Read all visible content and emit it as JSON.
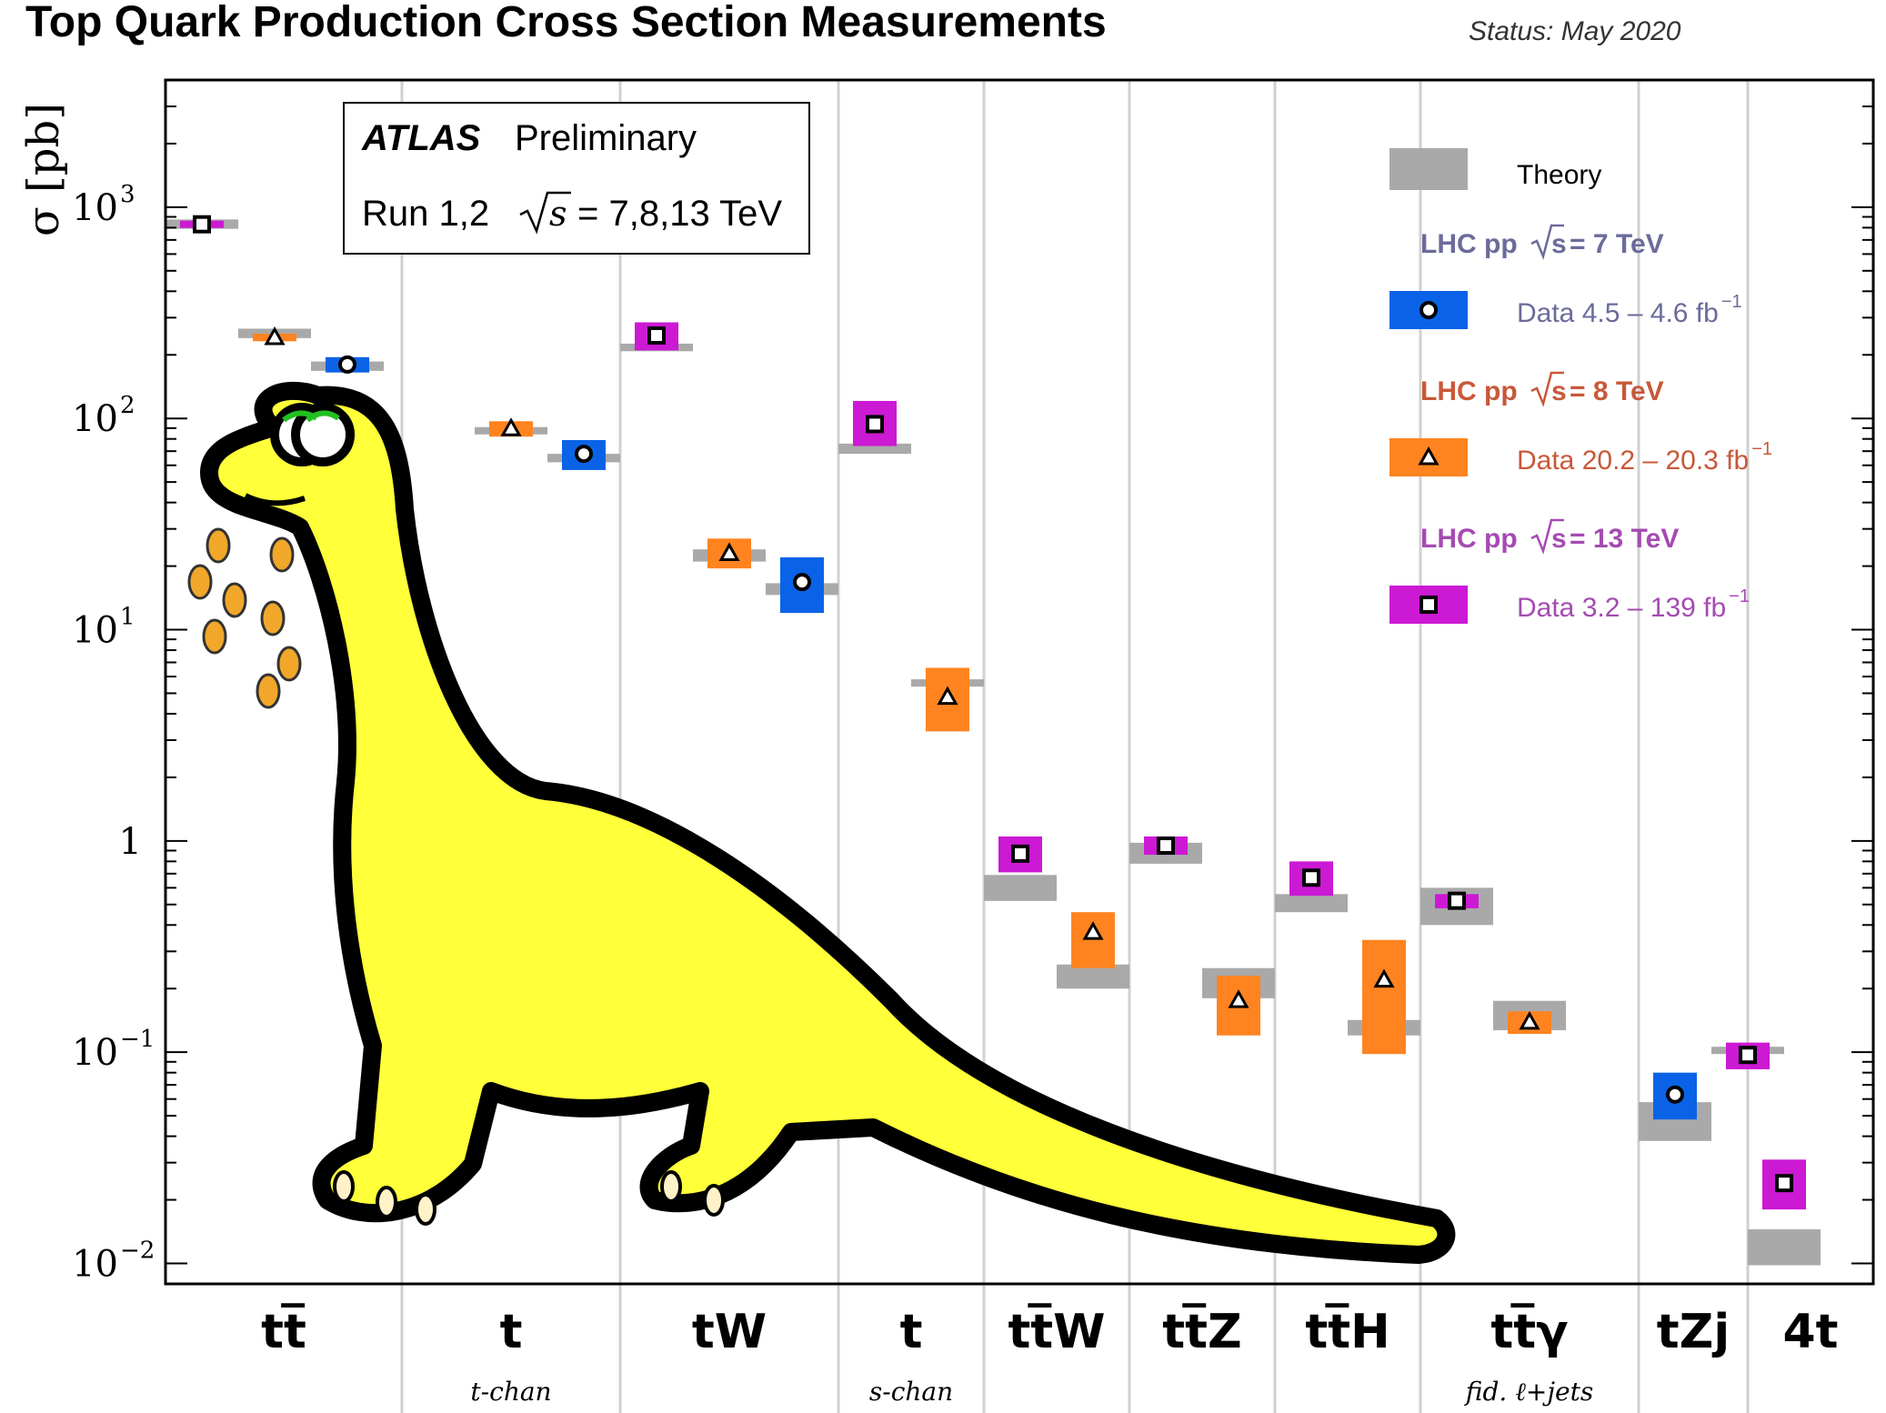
{
  "page": {
    "title": "Top Quark Production Cross Section Measurements",
    "status": "Status: May 2020"
  },
  "infobox": {
    "experiment": "ATLAS",
    "tag": "Preliminary",
    "run": "Run 1,2",
    "energy": "= 7,8,13 TeV"
  },
  "legend": {
    "theory": "Theory",
    "groups": [
      {
        "label": "LHC pp",
        "energy": "= 7 TeV",
        "data": "Data  4.5 – 4.6 fb",
        "exp": "−1",
        "color": "#0a63e6",
        "textColor": "#6b6b9b",
        "marker": "circle"
      },
      {
        "label": "LHC pp",
        "energy": "= 8 TeV",
        "data": "Data  20.2 – 20.3 fb",
        "exp": "−1",
        "color": "#ff8420",
        "textColor": "#c8583a",
        "marker": "triangle"
      },
      {
        "label": "LHC pp",
        "energy": "= 13 TeV",
        "data": "Data  3.2 – 139 fb",
        "exp": "−1",
        "color": "#cc19d4",
        "textColor": "#a54bb2",
        "marker": "square"
      }
    ]
  },
  "chart_data": {
    "type": "scatter",
    "title": "Top Quark Production Cross Section Measurements",
    "ylabel": "σ [pb]",
    "yscale": "log",
    "ylim": [
      0.008,
      4000
    ],
    "yticks": [
      {
        "value": 1000,
        "base": "10",
        "exp": "3"
      },
      {
        "value": 100,
        "base": "10",
        "exp": "2"
      },
      {
        "value": 10,
        "base": "10",
        "exp": "1"
      },
      {
        "value": 1,
        "base": "1",
        "exp": ""
      },
      {
        "value": 0.1,
        "base": "10",
        "exp": "−1"
      },
      {
        "value": 0.01,
        "base": "10",
        "exp": "−2"
      }
    ],
    "categories": [
      {
        "label": "tt̅",
        "sub": ""
      },
      {
        "label": "t",
        "sub": "t-chan"
      },
      {
        "label": "tW",
        "sub": ""
      },
      {
        "label": "t",
        "sub": "s-chan"
      },
      {
        "label": "tt̅W",
        "sub": ""
      },
      {
        "label": "tt̅Z",
        "sub": ""
      },
      {
        "label": "tt̅H",
        "sub": ""
      },
      {
        "label": "tt̅γ",
        "sub": "fid. ℓ+jets"
      },
      {
        "label": "tZj",
        "sub": ""
      },
      {
        "label": "4t",
        "sub": ""
      }
    ],
    "series": [
      {
        "name": "LHC pp √s = 7 TeV",
        "color": "#0a63e6",
        "marker": "circle",
        "points": [
          {
            "cat": 0,
            "slot": 2,
            "value": 180,
            "lo": 165,
            "hi": 195,
            "th": 177,
            "th_lo": 168,
            "th_hi": 186
          },
          {
            "cat": 1,
            "slot": 2,
            "value": 68,
            "lo": 57,
            "hi": 79,
            "th": 65,
            "th_lo": 62,
            "th_hi": 68
          },
          {
            "cat": 2,
            "slot": 2,
            "value": 16.8,
            "lo": 12,
            "hi": 22,
            "th": 15.6,
            "th_lo": 14.6,
            "th_hi": 16.6
          },
          {
            "cat": 8,
            "slot": 0,
            "value": 0.063,
            "lo": 0.048,
            "hi": 0.08,
            "th": 0.047,
            "th_lo": 0.038,
            "th_hi": 0.058
          }
        ]
      },
      {
        "name": "LHC pp √s = 8 TeV",
        "color": "#ff8420",
        "marker": "triangle",
        "points": [
          {
            "cat": 0,
            "slot": 1,
            "value": 242,
            "lo": 232,
            "hi": 252,
            "th": 253,
            "th_lo": 240,
            "th_hi": 266
          },
          {
            "cat": 1,
            "slot": 1,
            "value": 89.6,
            "lo": 82,
            "hi": 97,
            "th": 87.7,
            "th_lo": 84,
            "th_hi": 91
          },
          {
            "cat": 2,
            "slot": 1,
            "value": 23,
            "lo": 19.5,
            "hi": 27,
            "th": 22.4,
            "th_lo": 21,
            "th_hi": 24
          },
          {
            "cat": 3,
            "slot": 1,
            "value": 4.8,
            "lo": 3.3,
            "hi": 6.6,
            "th": 5.6,
            "th_lo": 5.4,
            "th_hi": 5.8
          },
          {
            "cat": 4,
            "slot": 1,
            "value": 0.37,
            "lo": 0.25,
            "hi": 0.46,
            "th": 0.23,
            "th_lo": 0.2,
            "th_hi": 0.26
          },
          {
            "cat": 5,
            "slot": 1,
            "value": 0.176,
            "lo": 0.12,
            "hi": 0.23,
            "th": 0.215,
            "th_lo": 0.18,
            "th_hi": 0.25
          },
          {
            "cat": 6,
            "slot": 1,
            "value": 0.22,
            "lo": 0.098,
            "hi": 0.34,
            "th": 0.13,
            "th_lo": 0.12,
            "th_hi": 0.142
          },
          {
            "cat": 7,
            "slot": 1,
            "value": 0.139,
            "lo": 0.122,
            "hi": 0.156,
            "th": 0.151,
            "th_lo": 0.127,
            "th_hi": 0.175
          }
        ]
      },
      {
        "name": "LHC pp √s = 13 TeV",
        "color": "#cc19d4",
        "marker": "square",
        "points": [
          {
            "cat": 0,
            "slot": 0,
            "value": 830,
            "lo": 815,
            "hi": 845,
            "th": 832,
            "th_lo": 790,
            "th_hi": 875
          },
          {
            "cat": 1,
            "slot": 3,
            "value": 247,
            "lo": 210,
            "hi": 285,
            "th": 217,
            "th_lo": 208,
            "th_hi": 226
          },
          {
            "cat": 2,
            "slot": 3,
            "value": 94,
            "lo": 74,
            "hi": 121,
            "th": 71.7,
            "th_lo": 68,
            "th_hi": 76
          },
          {
            "cat": 4,
            "slot": 0,
            "value": 0.87,
            "lo": 0.71,
            "hi": 1.05,
            "th": 0.6,
            "th_lo": 0.52,
            "th_hi": 0.69
          },
          {
            "cat": 5,
            "slot": 0,
            "value": 0.95,
            "lo": 0.86,
            "hi": 1.05,
            "th": 0.88,
            "th_lo": 0.78,
            "th_hi": 0.98
          },
          {
            "cat": 6,
            "slot": 0,
            "value": 0.67,
            "lo": 0.55,
            "hi": 0.8,
            "th": 0.507,
            "th_lo": 0.46,
            "th_hi": 0.56
          },
          {
            "cat": 7,
            "slot": 0,
            "value": 0.521,
            "lo": 0.48,
            "hi": 0.56,
            "th": 0.495,
            "th_lo": 0.4,
            "th_hi": 0.6
          },
          {
            "cat": 8,
            "slot": 1,
            "value": 0.097,
            "lo": 0.083,
            "hi": 0.111,
            "th": 0.102,
            "th_lo": 0.099,
            "th_hi": 0.105
          },
          {
            "cat": 9,
            "slot": 0,
            "value": 0.024,
            "lo": 0.018,
            "hi": 0.031,
            "th": 0.012,
            "th_lo": 0.0098,
            "th_hi": 0.0145
          }
        ]
      }
    ],
    "grid": "vertical separators",
    "legend_position": "top-right"
  }
}
